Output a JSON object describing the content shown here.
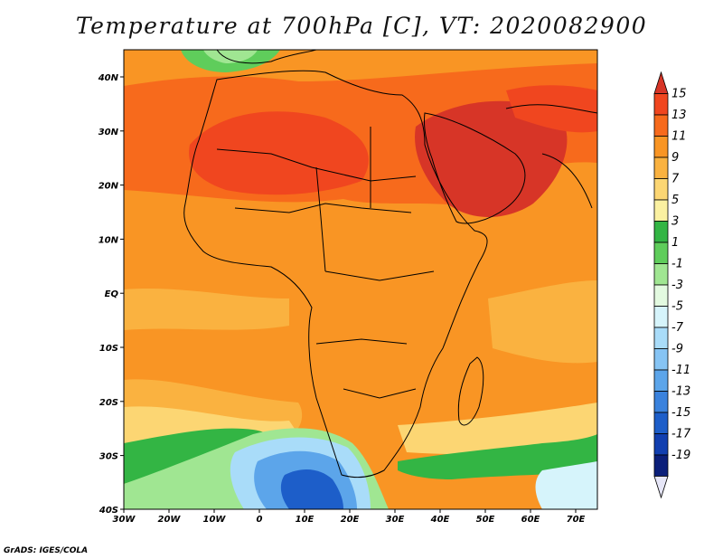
{
  "title": "Temperature at 700hPa [C], VT: 2020082900",
  "credit": "GrADS: IGES/COLA",
  "map": {
    "lon_ticks": [
      "30W",
      "20W",
      "10W",
      "0",
      "10E",
      "20E",
      "30E",
      "40E",
      "50E",
      "60E",
      "70E"
    ],
    "lat_ticks": [
      "40N",
      "30N",
      "20N",
      "10N",
      "EQ",
      "10S",
      "20S",
      "30S",
      "40S"
    ]
  },
  "colorbar": {
    "labels": [
      "15",
      "13",
      "11",
      "9",
      "7",
      "5",
      "3",
      "1",
      "-1",
      "-3",
      "-5",
      "-7",
      "-9",
      "-11",
      "-13",
      "-15",
      "-17",
      "-19"
    ],
    "colors": [
      "#d73527",
      "#f0461f",
      "#f76a1c",
      "#f99524",
      "#fab240",
      "#fcd673",
      "#fbf1a1",
      "#33b544",
      "#5fcd5b",
      "#a0e692",
      "#e3fae0",
      "#d6f4fb",
      "#a9dcf9",
      "#86c4f4",
      "#5ca5ea",
      "#3a82dd",
      "#1d5ec9",
      "#113fb0",
      "#0b1f7a",
      "#e6e6f7"
    ]
  }
}
